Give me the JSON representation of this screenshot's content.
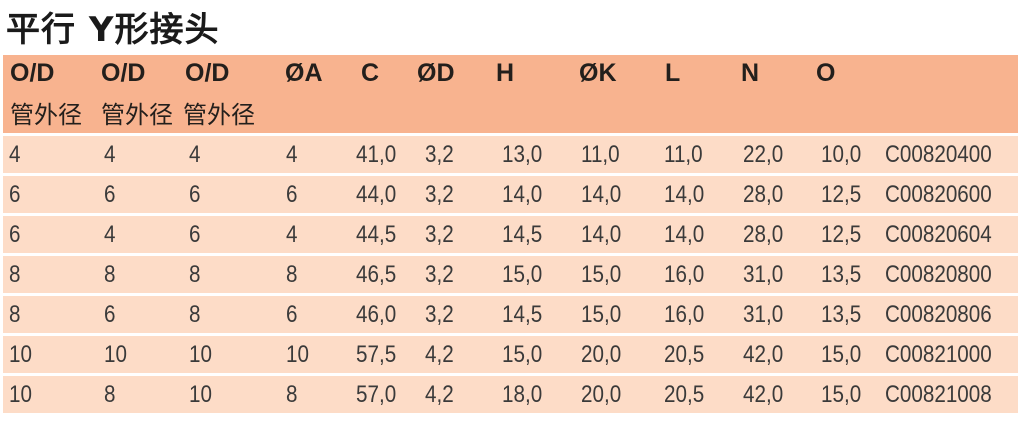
{
  "title": "平行 Y形接头",
  "headers": [
    "O/D",
    "O/D",
    "O/D",
    "ØA",
    "C",
    "ØD",
    "H",
    "ØK",
    "L",
    "N",
    "O",
    ""
  ],
  "subheaders": [
    "管外径",
    "管外径",
    "管外径"
  ],
  "rows": [
    [
      "4",
      "4",
      "4",
      "4",
      "41,0",
      "3,2",
      "13,0",
      "11,0",
      "11,0",
      "22,0",
      "10,0",
      "C00820400"
    ],
    [
      "6",
      "6",
      "6",
      "6",
      "44,0",
      "3,2",
      "14,0",
      "14,0",
      "14,0",
      "28,0",
      "12,5",
      "C00820600"
    ],
    [
      "6",
      "4",
      "6",
      "4",
      "44,5",
      "3,2",
      "14,5",
      "14,0",
      "14,0",
      "28,0",
      "12,5",
      "C00820604"
    ],
    [
      "8",
      "8",
      "8",
      "8",
      "46,5",
      "3,2",
      "15,0",
      "15,0",
      "16,0",
      "31,0",
      "13,5",
      "C00820800"
    ],
    [
      "8",
      "6",
      "8",
      "6",
      "46,0",
      "3,2",
      "14,5",
      "15,0",
      "16,0",
      "31,0",
      "13,5",
      "C00820806"
    ],
    [
      "10",
      "10",
      "10",
      "10",
      "57,5",
      "4,2",
      "15,0",
      "20,0",
      "20,5",
      "42,0",
      "15,0",
      "C00821000"
    ],
    [
      "10",
      "8",
      "10",
      "8",
      "57,0",
      "4,2",
      "18,0",
      "20,0",
      "20,5",
      "42,0",
      "15,0",
      "C00821008"
    ]
  ],
  "colors": {
    "header_bg": "#f8b38f",
    "row_bg": "#fddcc7"
  }
}
